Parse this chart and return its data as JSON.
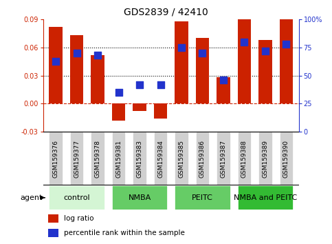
{
  "title": "GDS2839 / 42410",
  "samples": [
    "GSM159376",
    "GSM159377",
    "GSM159378",
    "GSM159381",
    "GSM159383",
    "GSM159384",
    "GSM159385",
    "GSM159386",
    "GSM159387",
    "GSM159388",
    "GSM159389",
    "GSM159390"
  ],
  "log_ratio": [
    0.082,
    0.073,
    0.052,
    -0.018,
    -0.008,
    -0.016,
    0.088,
    0.07,
    0.028,
    0.09,
    0.068,
    0.09
  ],
  "percentile_rank": [
    63,
    70,
    68,
    35,
    42,
    42,
    75,
    70,
    46,
    80,
    72,
    78
  ],
  "groups": [
    {
      "label": "control",
      "start": 0,
      "end": 3,
      "color": "#d4f5d4"
    },
    {
      "label": "NMBA",
      "start": 3,
      "end": 6,
      "color": "#66cc66"
    },
    {
      "label": "PEITC",
      "start": 6,
      "end": 9,
      "color": "#66cc66"
    },
    {
      "label": "NMBA and PEITC",
      "start": 9,
      "end": 12,
      "color": "#33bb33"
    }
  ],
  "ylim_left": [
    -0.03,
    0.09
  ],
  "ylim_right": [
    0,
    100
  ],
  "yticks_left": [
    -0.03,
    0,
    0.03,
    0.06,
    0.09
  ],
  "yticks_right": [
    0,
    25,
    50,
    75,
    100
  ],
  "hlines_dotted": [
    0.03,
    0.06
  ],
  "bar_color": "#cc2200",
  "dot_color": "#2233cc",
  "bar_width": 0.65,
  "dot_size": 50,
  "title_fontsize": 10,
  "tick_fontsize": 7,
  "sample_fontsize": 6.5,
  "legend_fontsize": 7.5,
  "group_label_fontsize": 8,
  "agent_fontsize": 8,
  "right_axis_color": "#2233cc",
  "left_axis_color": "#cc2200",
  "background_color": "#ffffff"
}
